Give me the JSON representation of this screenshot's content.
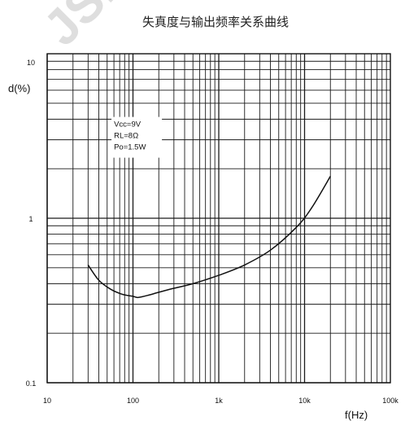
{
  "watermark": "JSM",
  "chart_data": {
    "type": "line",
    "title": "失真度与输出频率关系曲线",
    "xlabel": "f(Hz)",
    "ylabel": "d(%)",
    "xscale": "log",
    "yscale": "log",
    "xlim": [
      10,
      100000
    ],
    "ylim": [
      0.1,
      10
    ],
    "x_ticks": [
      {
        "value": 10,
        "label": "10"
      },
      {
        "value": 100,
        "label": "100"
      },
      {
        "value": 1000,
        "label": "1k"
      },
      {
        "value": 10000,
        "label": "10k"
      },
      {
        "value": 100000,
        "label": "100k"
      }
    ],
    "y_ticks": [
      {
        "value": 10,
        "label": "10"
      },
      {
        "value": 1,
        "label": "1"
      },
      {
        "value": 0.1,
        "label": "0.1"
      }
    ],
    "grid": true,
    "annotation": [
      "Vcc=9V",
      "RL=8Ω",
      "Po=1.5W"
    ],
    "series": [
      {
        "x": [
          30,
          40,
          55,
          75,
          100,
          115,
          150,
          200,
          300,
          500,
          1000,
          2000,
          4000,
          8000,
          12000,
          20000
        ],
        "y": [
          0.52,
          0.42,
          0.37,
          0.345,
          0.335,
          0.33,
          0.34,
          0.355,
          0.375,
          0.4,
          0.45,
          0.52,
          0.64,
          0.88,
          1.15,
          1.8
        ]
      }
    ],
    "colors": {
      "axis": "#111111",
      "grid": "#1a1a1a",
      "line": "#111111",
      "text": "#111111"
    }
  }
}
